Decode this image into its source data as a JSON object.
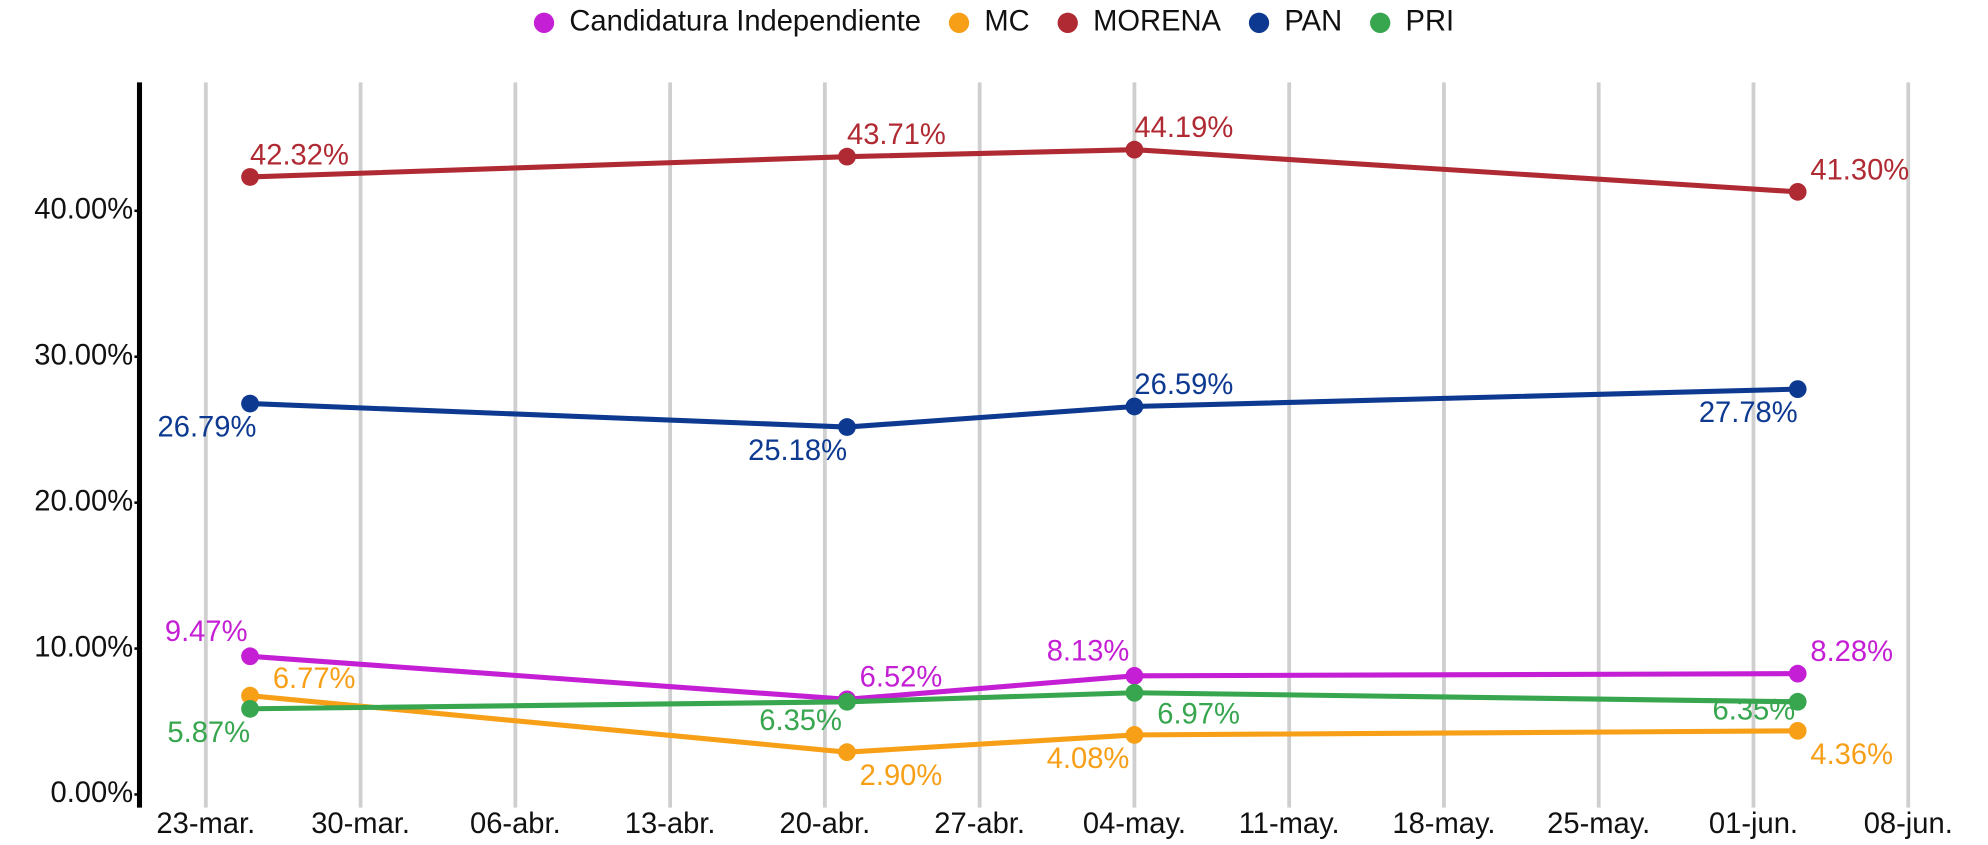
{
  "chart_data": {
    "type": "line",
    "x": [
      "03-25",
      "04-21",
      "05-04",
      "06-03"
    ],
    "series": [
      {
        "name": "Candidatura Independiente",
        "color": "#c41fd4",
        "values": [
          9.47,
          6.52,
          8.13,
          8.28
        ],
        "value_labels": [
          "9.47%",
          "6.52%",
          "8.13%",
          "8.28%"
        ]
      },
      {
        "name": "MC",
        "color": "#f79f17",
        "values": [
          6.77,
          2.9,
          4.08,
          4.36
        ],
        "value_labels": [
          "6.77%",
          "2.90%",
          "4.08%",
          "4.36%"
        ]
      },
      {
        "name": "MORENA",
        "color": "#b02a33",
        "values": [
          42.32,
          43.71,
          44.19,
          41.3
        ],
        "value_labels": [
          "42.32%",
          "43.71%",
          "44.19%",
          "41.30%"
        ]
      },
      {
        "name": "PAN",
        "color": "#0d3990",
        "values": [
          26.79,
          25.18,
          26.59,
          27.78
        ],
        "value_labels": [
          "26.79%",
          "25.18%",
          "26.59%",
          "27.78%"
        ]
      },
      {
        "name": "PRI",
        "color": "#37a64f",
        "values": [
          5.87,
          6.35,
          6.97,
          6.35
        ],
        "value_labels": [
          "5.87%",
          "6.35%",
          "6.97%",
          "6.35%"
        ]
      }
    ],
    "xlim": [
      "03-20",
      "06-10"
    ],
    "xticks": [
      {
        "value": "03-23",
        "label": "23-mar."
      },
      {
        "value": "03-30",
        "label": "30-mar."
      },
      {
        "value": "04-06",
        "label": "06-abr."
      },
      {
        "value": "04-13",
        "label": "13-abr."
      },
      {
        "value": "04-20",
        "label": "20-abr."
      },
      {
        "value": "04-27",
        "label": "27-abr."
      },
      {
        "value": "05-04",
        "label": "04-may."
      },
      {
        "value": "05-11",
        "label": "11-may."
      },
      {
        "value": "05-18",
        "label": "18-may."
      },
      {
        "value": "05-25",
        "label": "25-may."
      },
      {
        "value": "06-01",
        "label": "01-jun."
      },
      {
        "value": "06-08",
        "label": "08-jun."
      }
    ],
    "ylim": [
      -0.9,
      48.8
    ],
    "yticks": [
      {
        "value": 0,
        "label": "0.00%"
      },
      {
        "value": 10,
        "label": "10.00%"
      },
      {
        "value": 20,
        "label": "20.00%"
      },
      {
        "value": 30,
        "label": "30.00%"
      },
      {
        "value": 40,
        "label": "40.00%"
      }
    ],
    "grid": true,
    "legend": "top"
  }
}
